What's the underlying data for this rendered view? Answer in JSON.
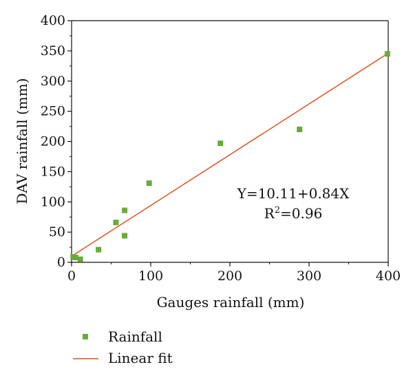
{
  "chart_data": {
    "type": "scatter",
    "xlabel": "Gauges rainfall (mm)",
    "ylabel": "DAV rainfall (mm)",
    "xlim": [
      0,
      400
    ],
    "ylim": [
      0,
      400
    ],
    "xticks": [
      0,
      100,
      200,
      300,
      400
    ],
    "yticks": [
      0,
      50,
      100,
      150,
      200,
      250,
      300,
      350,
      400
    ],
    "grid": false,
    "legend_position": "bottom-left, below plot",
    "series": [
      {
        "name": "Rainfall",
        "kind": "scatter",
        "marker": "square",
        "color": "#6aaa3a",
        "points": [
          {
            "x": 2,
            "y": 9
          },
          {
            "x": 5,
            "y": 8
          },
          {
            "x": 11,
            "y": 5
          },
          {
            "x": 34,
            "y": 21
          },
          {
            "x": 56,
            "y": 66
          },
          {
            "x": 67,
            "y": 44
          },
          {
            "x": 67,
            "y": 86
          },
          {
            "x": 98,
            "y": 131
          },
          {
            "x": 188,
            "y": 197
          },
          {
            "x": 288,
            "y": 220
          },
          {
            "x": 399,
            "y": 345
          }
        ]
      },
      {
        "name": "Linear fit",
        "kind": "line",
        "color": "#d9541e",
        "intercept": 10.11,
        "slope": 0.84,
        "x_range": [
          0,
          400
        ]
      }
    ],
    "annotations": {
      "equation": "Y=10.11+0.84X",
      "r2_prefix": "R",
      "r2_sup": "2",
      "r2_value": "=0.96"
    }
  }
}
